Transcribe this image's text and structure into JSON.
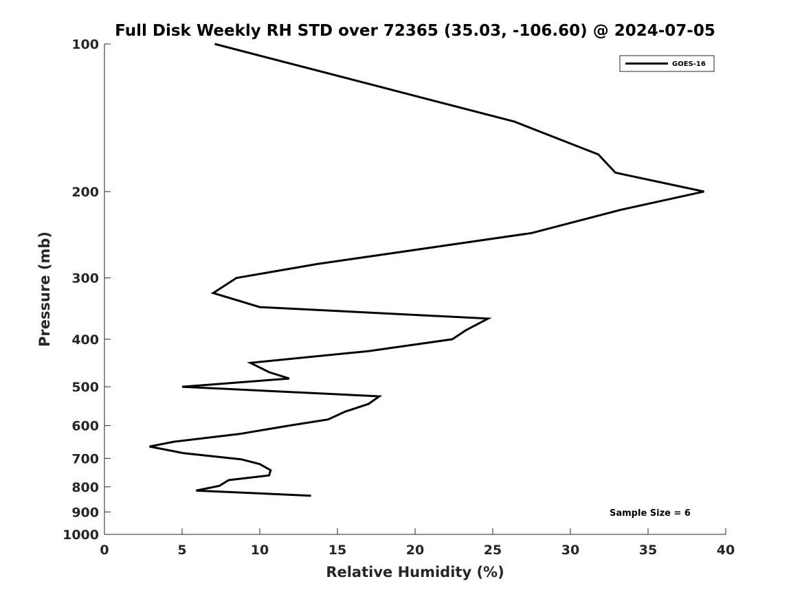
{
  "chart_data": {
    "type": "line",
    "title": "Full Disk Weekly RH STD over 72365 (35.03, -106.60) @ 2024-07-05",
    "xlabel": "Relative Humidity (%)",
    "ylabel": "Pressure (mb)",
    "xlim": [
      0,
      40
    ],
    "ylim": [
      100,
      1000
    ],
    "y_scale": "log",
    "y_reversed": true,
    "grid": false,
    "x_ticks": [
      0,
      5,
      10,
      15,
      20,
      25,
      30,
      35,
      40
    ],
    "y_ticks": [
      100,
      200,
      300,
      400,
      500,
      600,
      700,
      800,
      900,
      1000
    ],
    "legend": {
      "position": "top-right",
      "entries": [
        "GOES-16"
      ]
    },
    "annotation": "Sample Size = 6",
    "line_color": "#000000",
    "series": [
      {
        "name": "GOES-16",
        "x": [
          7.1,
          26.4,
          31.8,
          32.9,
          38.6,
          33.2,
          27.5,
          13.7,
          8.5,
          7.0,
          10.0,
          24.7,
          23.3,
          22.4,
          17.0,
          9.4,
          10.6,
          11.9,
          5.0,
          17.7,
          17.0,
          15.5,
          14.4,
          11.9,
          8.7,
          4.5,
          2.9,
          5.1,
          8.8,
          10.0,
          10.7,
          10.6,
          8.0,
          7.4,
          5.9,
          13.3
        ],
        "y": [
          100,
          144,
          168,
          183,
          200,
          218,
          243,
          281,
          300,
          322,
          344,
          363,
          383,
          400,
          423,
          447,
          467,
          481,
          500,
          523,
          542,
          562,
          583,
          600,
          624,
          647,
          662,
          683,
          703,
          719,
          740,
          758,
          775,
          796,
          814,
          834
        ]
      }
    ]
  }
}
